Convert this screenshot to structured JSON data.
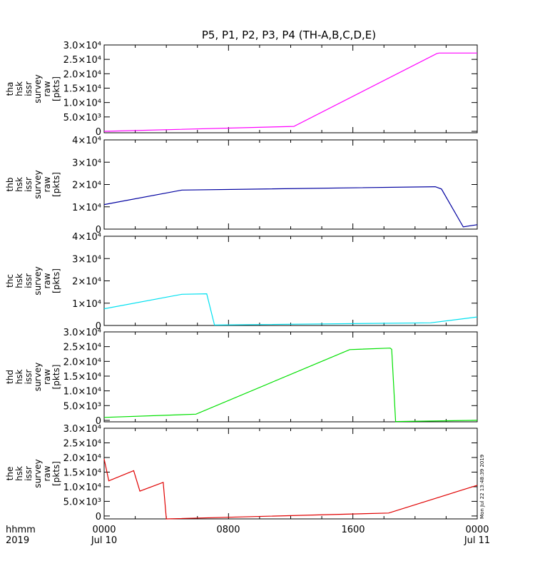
{
  "title": "P5, P1, P2, P3, P4 (TH-A,B,C,D,E)",
  "footer": {
    "left_line1": "hhmm",
    "left_line2": "2019",
    "xticks": [
      {
        "label": "0000",
        "sub": "Jul 10"
      },
      {
        "label": "0800",
        "sub": ""
      },
      {
        "label": "1600",
        "sub": ""
      },
      {
        "label": "0000",
        "sub": "Jul 11"
      }
    ],
    "stamp": "Mon Jul 22 13:48:39 2019"
  },
  "chart_data": [
    {
      "type": "line",
      "probe": "tha",
      "ylabel": [
        "tha",
        "hsk",
        "issr",
        "survey",
        "raw",
        "[pkts]"
      ],
      "color": "#ff00ff",
      "ylim": [
        -500,
        30000
      ],
      "yticks": [
        0,
        5000,
        10000,
        15000,
        20000,
        25000,
        30000
      ],
      "yticklabels": [
        "0",
        "5.0×10³",
        "1.0×10⁴",
        "1.5×10⁴",
        "2.0×10⁴",
        "2.5×10⁴",
        "3.0×10⁴"
      ],
      "x_hours": [
        0,
        12.2,
        21.4,
        21.55,
        24
      ],
      "y": [
        0,
        1700,
        27000,
        27200,
        27200
      ]
    },
    {
      "type": "line",
      "probe": "thb",
      "ylabel": [
        "thb",
        "hsk",
        "issr",
        "survey",
        "raw",
        "[pkts]"
      ],
      "color": "#0000a0",
      "ylim": [
        0,
        40000
      ],
      "yticks": [
        0,
        10000,
        20000,
        30000,
        40000
      ],
      "yticklabels": [
        "0",
        "1×10⁴",
        "2×10⁴",
        "3×10⁴",
        "4×10⁴"
      ],
      "x_hours": [
        0,
        5.0,
        21.3,
        21.7,
        23.1,
        24
      ],
      "y": [
        11000,
        17500,
        19000,
        18000,
        1000,
        2000
      ]
    },
    {
      "type": "line",
      "probe": "thc",
      "ylabel": [
        "thc",
        "hsk",
        "issr",
        "survey",
        "raw",
        "[pkts]"
      ],
      "color": "#00e0f0",
      "ylim": [
        0,
        40000
      ],
      "yticks": [
        0,
        10000,
        20000,
        30000,
        40000
      ],
      "yticklabels": [
        "0",
        "1×10⁴",
        "2×10⁴",
        "3×10⁴",
        "4×10⁴"
      ],
      "x_hours": [
        0,
        5.0,
        6.6,
        7.1,
        21.0,
        24
      ],
      "y": [
        7500,
        14000,
        14200,
        200,
        1200,
        3800
      ]
    },
    {
      "type": "line",
      "probe": "thd",
      "ylabel": [
        "thd",
        "hsk",
        "issr",
        "survey",
        "raw",
        "[pkts]"
      ],
      "color": "#00e000",
      "ylim": [
        -500,
        30000
      ],
      "yticks": [
        0,
        5000,
        10000,
        15000,
        20000,
        25000,
        30000
      ],
      "yticklabels": [
        "0",
        "5.0×10³",
        "1.0×10⁴",
        "1.5×10⁴",
        "2.0×10⁴",
        "2.5×10⁴",
        "3.0×10⁴"
      ],
      "x_hours": [
        0,
        5.9,
        15.8,
        18.4,
        18.5,
        18.75,
        24
      ],
      "y": [
        1000,
        2100,
        24000,
        24500,
        24100,
        -400,
        0
      ]
    },
    {
      "type": "line",
      "probe": "the",
      "ylabel": [
        "the",
        "hsk",
        "issr",
        "survey",
        "raw",
        "[pkts]"
      ],
      "color": "#e00000",
      "ylim": [
        -1000,
        30000
      ],
      "yticks": [
        0,
        5000,
        10000,
        15000,
        20000,
        25000,
        30000
      ],
      "yticklabels": [
        "0",
        "5.0×10³",
        "1.0×10⁴",
        "1.5×10⁴",
        "2.0×10⁴",
        "2.5×10⁴",
        "3.0×10⁴"
      ],
      "x_hours": [
        0,
        0.3,
        1.9,
        2.3,
        3.8,
        4.0,
        18.3,
        24
      ],
      "y": [
        19500,
        12000,
        15500,
        8500,
        11500,
        -1000,
        1000,
        10500
      ]
    }
  ]
}
